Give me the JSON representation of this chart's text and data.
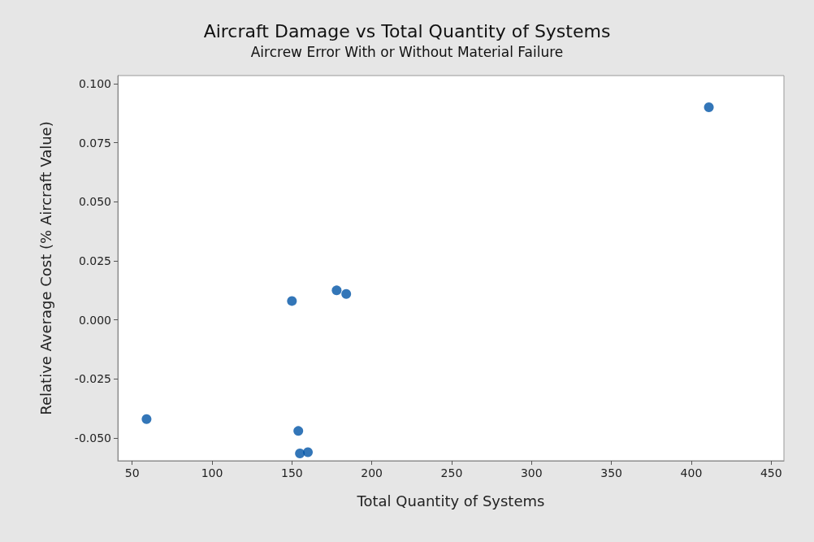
{
  "chart_data": {
    "type": "scatter",
    "title": "Aircraft Damage vs Total Quantity of Systems",
    "subtitle": "Aircrew Error With or Without Material Failure",
    "xlabel": "Total Quantity of Systems",
    "ylabel": "Relative Average Cost (% Aircraft Value)",
    "x": [
      59,
      150,
      178,
      184,
      154,
      155,
      160,
      411
    ],
    "values": [
      -0.042,
      0.008,
      0.0125,
      0.011,
      -0.047,
      -0.0565,
      -0.056,
      0.09
    ],
    "color": "#0054a6",
    "marker": "circle",
    "grid": false,
    "xlim": [
      41,
      458
    ],
    "ylim": [
      -0.0596,
      0.1034
    ],
    "xticks": [
      50,
      100,
      150,
      200,
      250,
      300,
      350,
      400,
      450
    ],
    "yticks": [
      {
        "value": 0.1,
        "label": "0.100"
      },
      {
        "value": 0.075,
        "label": "0.075"
      },
      {
        "value": 0.05,
        "label": "0.050"
      },
      {
        "value": 0.025,
        "label": "0.025"
      },
      {
        "value": 0,
        "label": "0.000"
      },
      {
        "value": -0.025,
        "label": "-0.025"
      },
      {
        "value": -0.05,
        "label": "-0.050"
      }
    ]
  }
}
